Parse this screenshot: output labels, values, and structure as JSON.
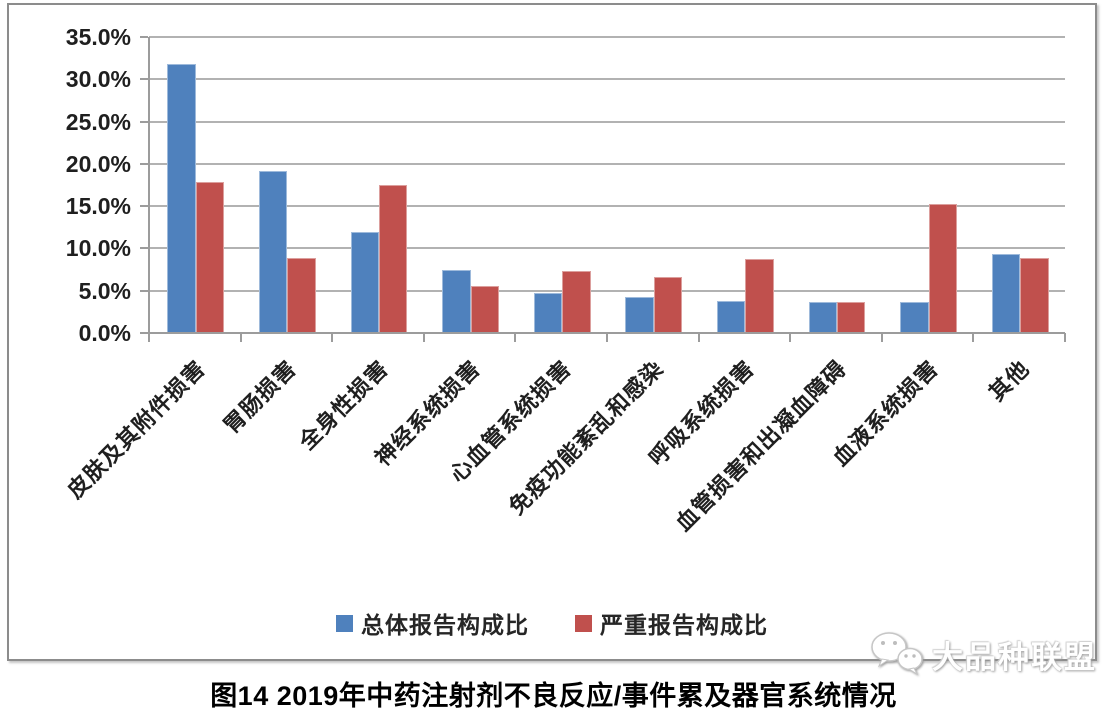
{
  "caption": "图14 2019年中药注射剂不良反应/事件累及器官系统情况",
  "watermark": {
    "text": "大品种联盟",
    "icon": "wechat-bubbles-icon"
  },
  "chart_data": {
    "type": "bar",
    "title": "图14 2019年中药注射剂不良反应/事件累及器官系统情况",
    "categories": [
      "皮肤及其附件损害",
      "胃肠损害",
      "全身性损害",
      "神经系统损害",
      "心血管系统损害",
      "免疫功能紊乱和感染",
      "呼吸系统损害",
      "血管损害和出凝血障碍",
      "血液系统损害",
      "其他"
    ],
    "series": [
      {
        "name": "总体报告构成比",
        "color": "#4F81BD",
        "values": [
          31.8,
          19.1,
          12.0,
          7.4,
          4.7,
          4.3,
          3.8,
          3.7,
          3.7,
          9.3
        ]
      },
      {
        "name": "严重报告构成比",
        "color": "#C0504D",
        "values": [
          17.8,
          8.9,
          17.5,
          5.5,
          7.3,
          6.6,
          8.7,
          3.7,
          15.2,
          8.9
        ]
      }
    ],
    "unit": "%",
    "y_axis": {
      "min": 0,
      "max": 35,
      "step": 5,
      "tick_labels": [
        "0.0%",
        "5.0%",
        "10.0%",
        "15.0%",
        "20.0%",
        "25.0%",
        "30.0%",
        "35.0%"
      ]
    },
    "grid": true,
    "legend_position": "bottom",
    "colors": {
      "gridline": "#b2b2b2",
      "axis": "#9c9c9c",
      "text": "#1f1f1f"
    }
  }
}
